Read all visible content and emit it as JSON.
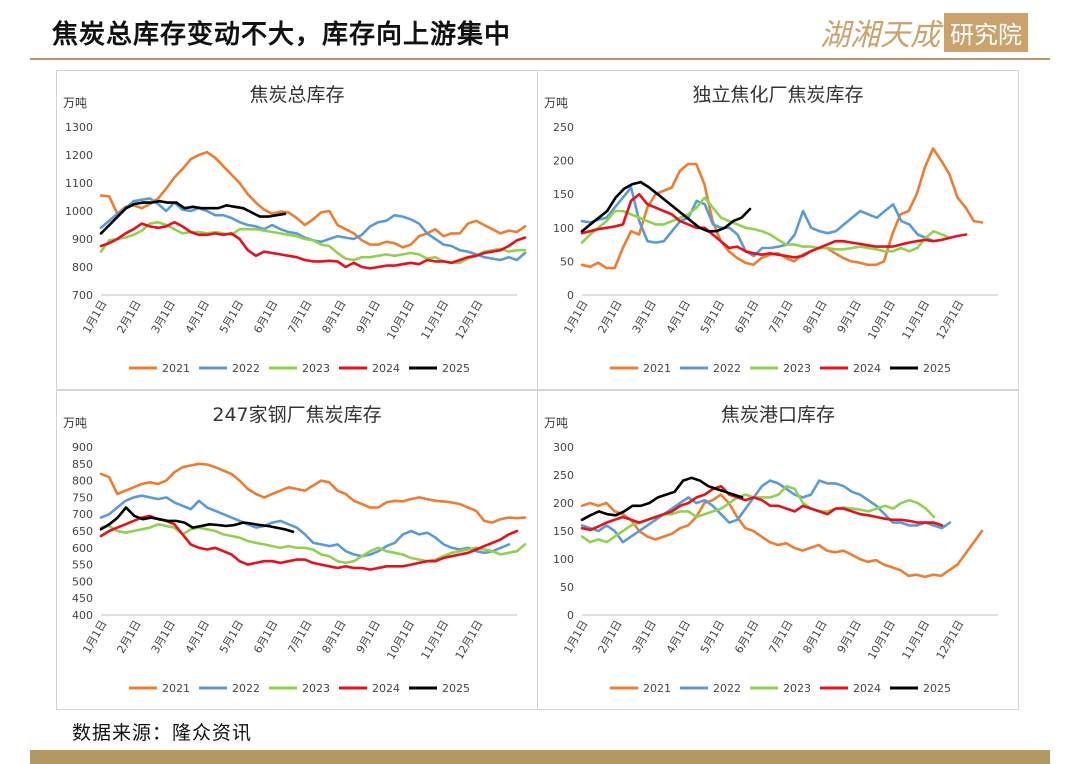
{
  "page": {
    "title": "焦炭总库存变动不大，库存向上游集中",
    "logo_script": "湖湘天成",
    "logo_box": "研究院",
    "source": "数据来源：隆众资讯"
  },
  "colors": {
    "2021": "#ed7d31",
    "2022": "#5b9bd5",
    "2023": "#92d050",
    "2024": "#e8101c",
    "2025": "#000000",
    "accent": "#b49863"
  },
  "chart_data": [
    {
      "type": "line",
      "title": "焦炭总库存",
      "unit": "万吨",
      "ylim": [
        700,
        1300
      ],
      "yticks": [
        700,
        800,
        900,
        1000,
        1100,
        1200,
        1300
      ],
      "x_ticks": [
        "1月1日",
        "2月1日",
        "3月1日",
        "4月1日",
        "5月1日",
        "6月1日",
        "7月1日",
        "8月1日",
        "9月1日",
        "10月1日",
        "11月1日",
        "12月1日"
      ],
      "series": [
        {
          "name": "2021",
          "values": [
            1055,
            1052,
            990,
            1015,
            1020,
            1010,
            1025,
            1045,
            1080,
            1120,
            1150,
            1185,
            1200,
            1210,
            1190,
            1160,
            1130,
            1100,
            1060,
            1030,
            1005,
            990,
            998,
            995,
            975,
            950,
            970,
            995,
            1000,
            950,
            935,
            920,
            895,
            880,
            880,
            890,
            885,
            870,
            880,
            910,
            920,
            935,
            910,
            920,
            920,
            955,
            965,
            950,
            935,
            920,
            930,
            925,
            945
          ]
        },
        {
          "name": "2022",
          "values": [
            940,
            965,
            990,
            1010,
            1035,
            1040,
            1045,
            1025,
            1000,
            1030,
            1005,
            1000,
            1010,
            1000,
            985,
            985,
            975,
            960,
            950,
            945,
            935,
            950,
            935,
            925,
            920,
            905,
            895,
            890,
            900,
            910,
            905,
            900,
            915,
            945,
            960,
            965,
            985,
            980,
            970,
            955,
            920,
            900,
            880,
            875,
            860,
            855,
            845,
            835,
            830,
            825,
            835,
            825,
            850
          ]
        },
        {
          "name": "2023",
          "values": [
            855,
            895,
            900,
            905,
            915,
            930,
            955,
            960,
            950,
            935,
            920,
            925,
            925,
            920,
            925,
            920,
            915,
            935,
            935,
            935,
            930,
            925,
            920,
            915,
            910,
            900,
            895,
            880,
            875,
            850,
            830,
            825,
            835,
            835,
            840,
            845,
            840,
            845,
            850,
            845,
            830,
            835,
            820,
            815,
            815,
            830,
            840,
            855,
            860,
            865,
            855,
            860,
            860
          ]
        },
        {
          "name": "2024",
          "values": [
            875,
            885,
            900,
            920,
            935,
            955,
            945,
            940,
            945,
            960,
            945,
            925,
            915,
            915,
            920,
            915,
            920,
            900,
            860,
            840,
            855,
            850,
            845,
            840,
            835,
            825,
            820,
            820,
            822,
            820,
            800,
            815,
            800,
            795,
            800,
            805,
            805,
            810,
            815,
            810,
            825,
            820,
            820,
            815,
            825,
            835,
            840,
            850,
            855,
            860,
            875,
            895,
            905
          ]
        },
        {
          "name": "2025",
          "values": [
            920,
            950,
            980,
            1010,
            1025,
            1030,
            1030,
            1035,
            1030,
            1030,
            1010,
            1015,
            1010,
            1010,
            1010,
            1020,
            1015,
            1010,
            995,
            980,
            980,
            985,
            990
          ]
        }
      ]
    },
    {
      "type": "line",
      "title": "独立焦化厂焦炭库存",
      "unit": "万吨",
      "ylim": [
        0,
        250
      ],
      "yticks": [
        0,
        50,
        100,
        150,
        200,
        250
      ],
      "x_ticks": [
        "1月1日",
        "2月1日",
        "3月1日",
        "4月1日",
        "5月1日",
        "6月1日",
        "7月1日",
        "8月1日",
        "9月1日",
        "10月1日",
        "11月1日",
        "12月1日"
      ],
      "series": [
        {
          "name": "2021",
          "values": [
            45,
            42,
            48,
            40,
            40,
            70,
            95,
            90,
            130,
            150,
            155,
            160,
            185,
            195,
            195,
            165,
            110,
            80,
            65,
            55,
            48,
            45,
            55,
            60,
            62,
            55,
            50,
            60,
            65,
            70,
            70,
            62,
            55,
            50,
            48,
            45,
            45,
            50,
            90,
            120,
            125,
            150,
            190,
            218,
            200,
            180,
            145,
            130,
            110,
            108
          ]
        },
        {
          "name": "2022",
          "values": [
            110,
            108,
            112,
            115,
            130,
            145,
            160,
            110,
            80,
            78,
            80,
            95,
            110,
            115,
            140,
            135,
            105,
            100,
            100,
            90,
            65,
            58,
            70,
            70,
            72,
            75,
            90,
            125,
            100,
            95,
            92,
            95,
            105,
            115,
            125,
            120,
            115,
            125,
            135,
            110,
            105,
            90,
            85,
            80
          ]
        },
        {
          "name": "2023",
          "values": [
            78,
            90,
            100,
            110,
            125,
            125,
            120,
            115,
            110,
            105,
            105,
            110,
            115,
            120,
            130,
            145,
            130,
            115,
            110,
            105,
            100,
            98,
            95,
            90,
            82,
            75,
            75,
            72,
            72,
            70,
            70,
            68,
            68,
            70,
            72,
            70,
            68,
            65,
            65,
            70,
            65,
            70,
            85,
            95,
            90,
            85
          ]
        },
        {
          "name": "2024",
          "values": [
            92,
            95,
            98,
            100,
            102,
            105,
            140,
            150,
            135,
            130,
            125,
            120,
            110,
            105,
            100,
            100,
            90,
            80,
            70,
            72,
            65,
            62,
            60,
            62,
            60,
            58,
            56,
            58,
            65,
            70,
            75,
            80,
            80,
            78,
            76,
            74,
            72,
            72,
            72,
            75,
            78,
            80,
            82,
            80,
            82,
            85,
            88,
            90
          ]
        },
        {
          "name": "2025",
          "values": [
            95,
            105,
            115,
            125,
            145,
            158,
            165,
            168,
            160,
            150,
            140,
            130,
            120,
            110,
            100,
            95,
            95,
            100,
            110,
            115,
            128
          ]
        }
      ]
    },
    {
      "type": "line",
      "title": "247家钢厂焦炭库存",
      "unit": "万吨",
      "ylim": [
        400,
        900
      ],
      "yticks": [
        400,
        450,
        500,
        550,
        600,
        650,
        700,
        750,
        800,
        850,
        900
      ],
      "x_ticks": [
        "1月1日",
        "2月1日",
        "3月1日",
        "4月1日",
        "5月1日",
        "6月1日",
        "7月1日",
        "8月1日",
        "9月1日",
        "10月1日",
        "11月1日",
        "12月1日"
      ],
      "series": [
        {
          "name": "2021",
          "values": [
            820,
            810,
            760,
            770,
            780,
            790,
            795,
            790,
            800,
            825,
            840,
            845,
            850,
            848,
            840,
            830,
            820,
            800,
            775,
            760,
            750,
            760,
            770,
            780,
            775,
            770,
            785,
            800,
            795,
            770,
            760,
            740,
            730,
            720,
            720,
            735,
            740,
            738,
            745,
            750,
            745,
            740,
            738,
            735,
            730,
            720,
            710,
            680,
            675,
            685,
            690,
            688,
            690
          ]
        },
        {
          "name": "2022",
          "values": [
            690,
            700,
            720,
            740,
            750,
            755,
            750,
            745,
            750,
            735,
            725,
            715,
            740,
            720,
            710,
            700,
            690,
            680,
            670,
            660,
            665,
            675,
            680,
            670,
            660,
            640,
            615,
            610,
            605,
            610,
            590,
            580,
            575,
            580,
            590,
            605,
            615,
            640,
            650,
            640,
            645,
            630,
            610,
            600,
            595,
            600,
            590,
            585,
            590,
            600,
            610
          ]
        },
        {
          "name": "2023",
          "values": [
            660,
            665,
            650,
            645,
            650,
            655,
            660,
            670,
            665,
            660,
            640,
            655,
            660,
            655,
            650,
            640,
            635,
            630,
            620,
            615,
            610,
            605,
            600,
            605,
            600,
            600,
            595,
            580,
            575,
            560,
            555,
            560,
            575,
            590,
            600,
            590,
            585,
            580,
            570,
            565,
            560,
            565,
            575,
            585,
            590,
            595,
            600,
            595,
            590,
            580,
            585,
            590,
            610
          ]
        },
        {
          "name": "2024",
          "values": [
            635,
            650,
            660,
            670,
            680,
            690,
            695,
            685,
            680,
            670,
            640,
            610,
            600,
            595,
            600,
            590,
            580,
            560,
            550,
            555,
            560,
            560,
            555,
            560,
            565,
            565,
            555,
            550,
            545,
            540,
            545,
            540,
            540,
            535,
            540,
            545,
            545,
            545,
            550,
            555,
            560,
            560,
            570,
            575,
            580,
            585,
            595,
            605,
            615,
            625,
            640,
            650
          ]
        },
        {
          "name": "2025",
          "values": [
            655,
            670,
            690,
            720,
            695,
            685,
            690,
            685,
            680,
            680,
            675,
            660,
            665,
            670,
            668,
            665,
            668,
            675,
            672,
            668,
            665,
            660,
            655,
            648
          ]
        }
      ]
    },
    {
      "type": "line",
      "title": "焦炭港口库存",
      "unit": "万吨",
      "ylim": [
        0,
        300
      ],
      "yticks": [
        0,
        50,
        100,
        150,
        200,
        250,
        300
      ],
      "x_ticks": [
        "1月1日",
        "2月1日",
        "3月1日",
        "4月1日",
        "5月1日",
        "6月1日",
        "7月1日",
        "8月1日",
        "9月1日",
        "10月1日",
        "11月1日",
        "12月1日"
      ],
      "series": [
        {
          "name": "2021",
          "values": [
            195,
            200,
            195,
            200,
            185,
            180,
            170,
            150,
            140,
            135,
            140,
            145,
            155,
            160,
            175,
            200,
            205,
            215,
            200,
            175,
            155,
            150,
            140,
            130,
            125,
            128,
            120,
            115,
            120,
            125,
            115,
            112,
            115,
            108,
            100,
            95,
            98,
            90,
            85,
            80,
            70,
            72,
            68,
            72,
            70,
            80,
            90,
            110,
            130,
            150
          ]
        },
        {
          "name": "2022",
          "values": [
            160,
            155,
            150,
            160,
            150,
            130,
            140,
            150,
            160,
            170,
            180,
            190,
            200,
            210,
            200,
            205,
            195,
            180,
            165,
            170,
            190,
            210,
            230,
            240,
            235,
            225,
            215,
            210,
            215,
            240,
            235,
            235,
            230,
            220,
            215,
            205,
            195,
            180,
            165,
            165,
            160,
            160,
            165,
            160,
            155,
            165
          ]
        },
        {
          "name": "2023",
          "values": [
            140,
            130,
            135,
            130,
            140,
            150,
            160,
            165,
            170,
            175,
            180,
            180,
            185,
            185,
            175,
            180,
            185,
            190,
            200,
            210,
            215,
            210,
            210,
            210,
            215,
            230,
            225,
            200,
            190,
            185,
            185,
            190,
            192,
            190,
            188,
            185,
            190,
            195,
            190,
            200,
            205,
            200,
            190,
            175
          ]
        },
        {
          "name": "2024",
          "values": [
            155,
            152,
            158,
            165,
            170,
            175,
            170,
            165,
            170,
            175,
            180,
            185,
            195,
            200,
            210,
            215,
            225,
            230,
            215,
            210,
            205,
            210,
            205,
            195,
            195,
            190,
            185,
            195,
            190,
            185,
            180,
            190,
            190,
            185,
            180,
            178,
            175,
            172,
            170,
            170,
            168,
            165,
            165,
            165,
            160
          ]
        },
        {
          "name": "2025",
          "values": [
            170,
            178,
            185,
            180,
            178,
            185,
            195,
            195,
            200,
            210,
            215,
            220,
            240,
            245,
            240,
            230,
            225,
            220,
            215,
            210
          ]
        }
      ]
    }
  ]
}
